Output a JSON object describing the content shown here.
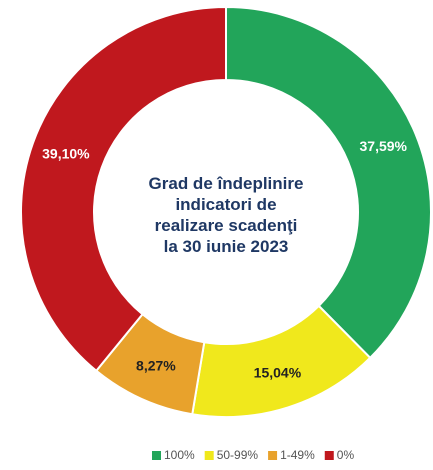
{
  "chart_data": {
    "type": "donut",
    "title": "Grad de îndeplinire indicatori de realizare scadenţi la 30 iunie 2023",
    "categories": [
      "100%",
      "50-99%",
      "1-49%",
      "0%"
    ],
    "values": [
      37.59,
      15.04,
      8.27,
      39.1
    ],
    "value_labels": [
      "37,59%",
      "15,04%",
      "8,27%",
      "39,10%"
    ],
    "colors": [
      "#22a55a",
      "#f0e81c",
      "#e8a22c",
      "#c0181e"
    ],
    "value_label_colors": [
      "#ffffff",
      "#222222",
      "#222222",
      "#ffffff"
    ],
    "legend": "bottom"
  }
}
